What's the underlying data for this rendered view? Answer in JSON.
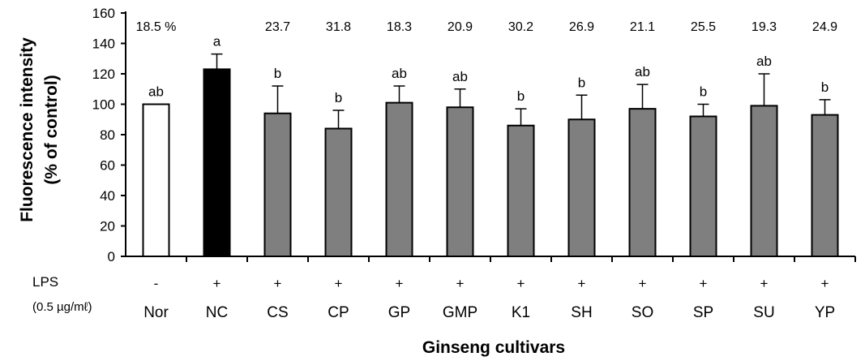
{
  "chart_data": {
    "type": "bar",
    "categories": [
      "Nor",
      "NC",
      "CS",
      "CP",
      "GP",
      "GMP",
      "K1",
      "SH",
      "SO",
      "SP",
      "SU",
      "YP"
    ],
    "values": [
      100,
      123,
      94,
      84,
      101,
      98,
      86,
      90,
      97,
      92,
      99,
      93
    ],
    "errors": [
      0,
      10,
      18,
      12,
      11,
      12,
      11,
      16,
      16,
      8,
      21,
      10
    ],
    "significance": [
      "ab",
      "a",
      "b",
      "b",
      "ab",
      "ab",
      "b",
      "b",
      "ab",
      "b",
      "ab",
      "b"
    ],
    "percent_labels": [
      "18.5  %",
      "",
      "23.7",
      "31.8",
      "18.3",
      "20.9",
      "30.2",
      "26.9",
      "21.1",
      "25.5",
      "19.3",
      "24.9"
    ],
    "lps": [
      "-",
      "+",
      "+",
      "+",
      "+",
      "+",
      "+",
      "+",
      "+",
      "+",
      "+",
      "+"
    ],
    "lps_label": "LPS",
    "lps_dose_label": "(0.5 µg/mℓ)",
    "bar_colors": [
      "#ffffff",
      "#000000",
      "#7f7f7f",
      "#7f7f7f",
      "#7f7f7f",
      "#7f7f7f",
      "#7f7f7f",
      "#7f7f7f",
      "#7f7f7f",
      "#7f7f7f",
      "#7f7f7f",
      "#7f7f7f"
    ],
    "ylabel_line1": "Fluorescence intensity",
    "ylabel_line2": "(% of control)",
    "xlabel": "Ginseng cultivars",
    "ylim": [
      0,
      160
    ],
    "yticks": [
      0,
      20,
      40,
      60,
      80,
      100,
      120,
      140,
      160
    ],
    "grid": false,
    "legend": "none"
  }
}
